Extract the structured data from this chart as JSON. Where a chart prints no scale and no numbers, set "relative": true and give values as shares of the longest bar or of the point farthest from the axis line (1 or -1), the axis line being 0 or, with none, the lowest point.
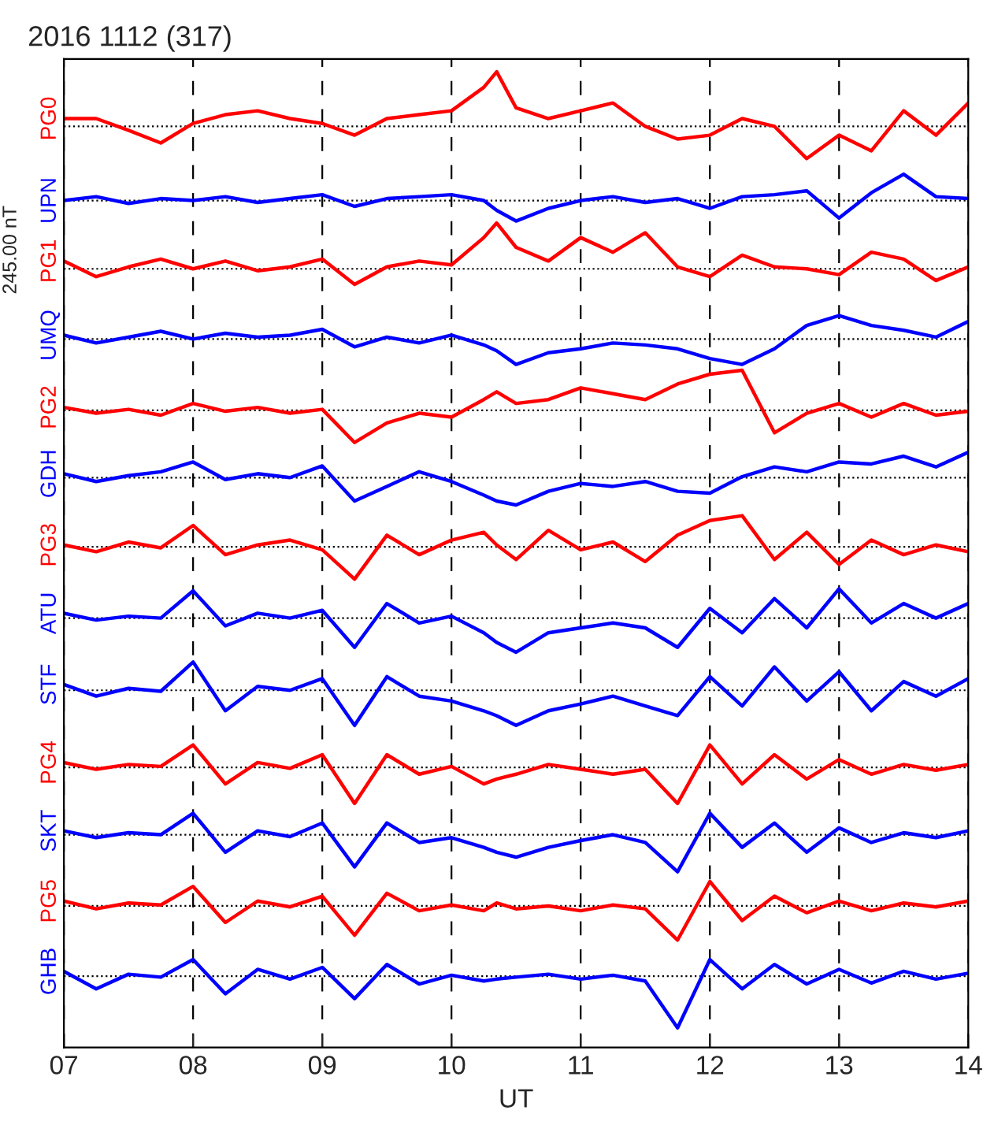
{
  "chart_data": {
    "type": "line",
    "title": "2016 1112 (317)",
    "xlabel": "UT",
    "relative": true,
    "tick_labels": "x",
    "grid": "x",
    "legend": false,
    "line_style": "solid",
    "annotations": [
      "245.00 nT"
    ],
    "xlim": [
      7,
      14
    ],
    "xticks": [
      {
        "value": 7,
        "label": "07"
      },
      {
        "value": 8,
        "label": "08"
      },
      {
        "value": 9,
        "label": "09"
      },
      {
        "value": 10,
        "label": "10"
      },
      {
        "value": 11,
        "label": "11"
      },
      {
        "value": 12,
        "label": "12"
      },
      {
        "value": 13,
        "label": "13"
      },
      {
        "value": 14,
        "label": "14"
      }
    ],
    "x": [
      7,
      7.25,
      7.5,
      7.75,
      8,
      8.25,
      8.5,
      8.75,
      9,
      9.25,
      9.5,
      9.75,
      10,
      10.25,
      10.35,
      10.5,
      10.75,
      11,
      11.25,
      11.5,
      11.75,
      12,
      12.25,
      12.5,
      12.75,
      13,
      13.25,
      13.5,
      13.75,
      14
    ],
    "ref_lines": [
      {
        "axis": "y",
        "value": 0.944,
        "line_style": "dotted",
        "color": "#000000"
      },
      {
        "axis": "y",
        "value": 0.868,
        "line_style": "dotted",
        "color": "#000000"
      },
      {
        "axis": "y",
        "value": 0.798,
        "line_style": "dotted",
        "color": "#000000"
      },
      {
        "axis": "y",
        "value": 0.726,
        "line_style": "dotted",
        "color": "#000000"
      },
      {
        "axis": "y",
        "value": 0.653,
        "line_style": "dotted",
        "color": "#000000"
      },
      {
        "axis": "y",
        "value": 0.584,
        "line_style": "dotted",
        "color": "#000000"
      },
      {
        "axis": "y",
        "value": 0.513,
        "line_style": "dotted",
        "color": "#000000"
      },
      {
        "axis": "y",
        "value": 0.44,
        "line_style": "dotted",
        "color": "#000000"
      },
      {
        "axis": "y",
        "value": 0.366,
        "line_style": "dotted",
        "color": "#000000"
      },
      {
        "axis": "y",
        "value": 0.287,
        "line_style": "dotted",
        "color": "#000000"
      },
      {
        "axis": "y",
        "value": 0.218,
        "line_style": "dotted",
        "color": "#000000"
      },
      {
        "axis": "y",
        "value": 0.145,
        "line_style": "dotted",
        "color": "#000000"
      },
      {
        "axis": "y",
        "value": 0.073,
        "line_style": "dotted",
        "color": "#000000"
      }
    ],
    "series": [
      {
        "name": "PG0",
        "color": "#ff0000",
        "values": [
          0.952,
          0.952,
          0.94,
          0.927,
          0.947,
          0.956,
          0.96,
          0.952,
          0.947,
          0.935,
          0.952,
          0.956,
          0.96,
          0.984,
          1.0,
          0.963,
          0.952,
          0.96,
          0.968,
          0.944,
          0.931,
          0.935,
          0.952,
          0.944,
          0.911,
          0.935,
          0.919,
          0.96,
          0.935,
          0.968
        ]
      },
      {
        "name": "UPN",
        "color": "#0000ff",
        "values": [
          0.868,
          0.872,
          0.865,
          0.87,
          0.868,
          0.872,
          0.866,
          0.87,
          0.874,
          0.862,
          0.87,
          0.872,
          0.874,
          0.868,
          0.858,
          0.847,
          0.86,
          0.868,
          0.872,
          0.866,
          0.87,
          0.86,
          0.872,
          0.874,
          0.878,
          0.85,
          0.876,
          0.895,
          0.872,
          0.87
        ]
      },
      {
        "name": "PG1",
        "color": "#ff0000",
        "values": [
          0.806,
          0.79,
          0.8,
          0.808,
          0.798,
          0.806,
          0.796,
          0.8,
          0.808,
          0.782,
          0.8,
          0.806,
          0.802,
          0.83,
          0.845,
          0.82,
          0.806,
          0.83,
          0.815,
          0.835,
          0.8,
          0.79,
          0.812,
          0.8,
          0.798,
          0.792,
          0.815,
          0.808,
          0.786,
          0.8
        ]
      },
      {
        "name": "UMQ",
        "color": "#0000ff",
        "values": [
          0.73,
          0.722,
          0.728,
          0.734,
          0.726,
          0.732,
          0.728,
          0.73,
          0.736,
          0.718,
          0.728,
          0.722,
          0.73,
          0.72,
          0.714,
          0.7,
          0.712,
          0.716,
          0.722,
          0.72,
          0.716,
          0.706,
          0.7,
          0.716,
          0.74,
          0.75,
          0.74,
          0.735,
          0.728,
          0.744
        ]
      },
      {
        "name": "PG2",
        "color": "#ff0000",
        "values": [
          0.656,
          0.65,
          0.654,
          0.648,
          0.66,
          0.652,
          0.656,
          0.65,
          0.654,
          0.62,
          0.64,
          0.65,
          0.646,
          0.664,
          0.672,
          0.66,
          0.664,
          0.676,
          0.67,
          0.664,
          0.68,
          0.69,
          0.694,
          0.63,
          0.65,
          0.66,
          0.646,
          0.66,
          0.648,
          0.652
        ]
      },
      {
        "name": "GDH",
        "color": "#0000ff",
        "values": [
          0.588,
          0.58,
          0.586,
          0.59,
          0.6,
          0.582,
          0.588,
          0.584,
          0.596,
          0.56,
          0.575,
          0.59,
          0.58,
          0.566,
          0.56,
          0.556,
          0.57,
          0.578,
          0.575,
          0.58,
          0.57,
          0.568,
          0.585,
          0.595,
          0.59,
          0.6,
          0.598,
          0.606,
          0.595,
          0.61
        ]
      },
      {
        "name": "PG3",
        "color": "#ff0000",
        "values": [
          0.515,
          0.508,
          0.518,
          0.512,
          0.535,
          0.505,
          0.515,
          0.52,
          0.51,
          0.48,
          0.525,
          0.505,
          0.52,
          0.528,
          0.515,
          0.5,
          0.53,
          0.51,
          0.518,
          0.498,
          0.525,
          0.54,
          0.545,
          0.5,
          0.528,
          0.495,
          0.52,
          0.505,
          0.515,
          0.508
        ]
      },
      {
        "name": "ATU",
        "color": "#0000ff",
        "values": [
          0.445,
          0.438,
          0.442,
          0.44,
          0.468,
          0.432,
          0.445,
          0.44,
          0.448,
          0.41,
          0.455,
          0.435,
          0.442,
          0.425,
          0.415,
          0.405,
          0.425,
          0.43,
          0.435,
          0.43,
          0.41,
          0.45,
          0.425,
          0.46,
          0.43,
          0.47,
          0.435,
          0.455,
          0.44,
          0.455
        ]
      },
      {
        "name": "STF",
        "color": "#0000ff",
        "values": [
          0.372,
          0.36,
          0.368,
          0.365,
          0.395,
          0.345,
          0.37,
          0.366,
          0.378,
          0.33,
          0.38,
          0.36,
          0.355,
          0.345,
          0.34,
          0.33,
          0.345,
          0.352,
          0.36,
          0.35,
          0.34,
          0.38,
          0.35,
          0.39,
          0.355,
          0.385,
          0.345,
          0.375,
          0.36,
          0.378
        ]
      },
      {
        "name": "PG4",
        "color": "#ff0000",
        "values": [
          0.292,
          0.285,
          0.29,
          0.288,
          0.31,
          0.27,
          0.292,
          0.286,
          0.3,
          0.25,
          0.3,
          0.28,
          0.288,
          0.27,
          0.275,
          0.28,
          0.29,
          0.285,
          0.28,
          0.285,
          0.25,
          0.31,
          0.27,
          0.3,
          0.275,
          0.295,
          0.28,
          0.29,
          0.284,
          0.29
        ]
      },
      {
        "name": "SKT",
        "color": "#0000ff",
        "values": [
          0.222,
          0.215,
          0.22,
          0.218,
          0.24,
          0.2,
          0.222,
          0.216,
          0.23,
          0.185,
          0.23,
          0.21,
          0.215,
          0.205,
          0.2,
          0.195,
          0.205,
          0.212,
          0.218,
          0.21,
          0.18,
          0.24,
          0.205,
          0.23,
          0.2,
          0.225,
          0.21,
          0.22,
          0.215,
          0.222
        ]
      },
      {
        "name": "PG5",
        "color": "#ff0000",
        "values": [
          0.15,
          0.142,
          0.148,
          0.146,
          0.165,
          0.128,
          0.15,
          0.144,
          0.155,
          0.115,
          0.158,
          0.14,
          0.146,
          0.14,
          0.148,
          0.142,
          0.145,
          0.14,
          0.146,
          0.142,
          0.11,
          0.17,
          0.13,
          0.155,
          0.138,
          0.15,
          0.14,
          0.148,
          0.144,
          0.15
        ]
      },
      {
        "name": "GHB",
        "color": "#0000ff",
        "values": [
          0.078,
          0.06,
          0.075,
          0.072,
          0.09,
          0.055,
          0.08,
          0.07,
          0.082,
          0.05,
          0.085,
          0.065,
          0.074,
          0.068,
          0.07,
          0.072,
          0.075,
          0.07,
          0.074,
          0.068,
          0.02,
          0.09,
          0.06,
          0.085,
          0.065,
          0.08,
          0.066,
          0.078,
          0.07,
          0.076
        ]
      }
    ]
  }
}
